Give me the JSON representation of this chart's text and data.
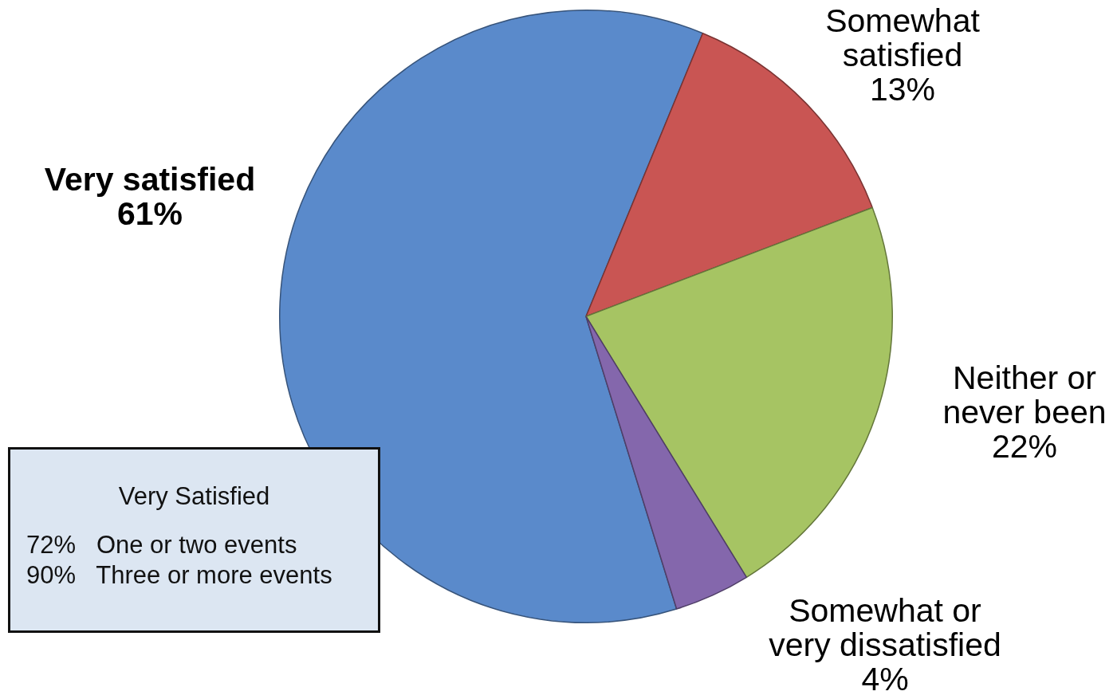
{
  "chart_data": {
    "type": "pie",
    "categories": [
      "Very satisfied",
      "Somewhat satisfied",
      "Neither or never been",
      "Somewhat or very dissatisfied"
    ],
    "values": [
      61,
      13,
      22,
      4
    ],
    "value_labels": [
      "61%",
      "13%",
      "22%",
      "4%"
    ],
    "colors": [
      "#5a8acb",
      "#c95553",
      "#a6c463",
      "#8467ac"
    ],
    "annotations": [
      "Very Satisfied",
      "72%   One or two events",
      "90%   Three or more events"
    ]
  }
}
